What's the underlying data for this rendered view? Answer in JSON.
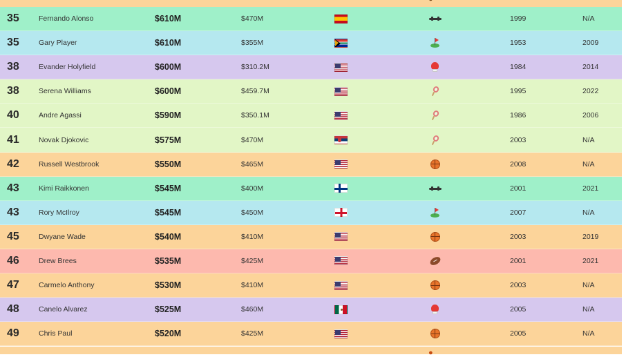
{
  "colors": {
    "orange": "#fcd49a",
    "green": "#9ff0c9",
    "cyan": "#b5e8ef",
    "purple": "#d6c8ee",
    "lime": "#e2f6c6",
    "red": "#fdb9ae"
  },
  "rows": [
    {
      "rank": "35",
      "name": "Fernando Alonso",
      "earnings": "$610M",
      "peak": "$470M",
      "flag": "flag-es",
      "sport_icon": "f1-car-icon",
      "start": "1999",
      "end": "N/A",
      "color": "#9ff0c9"
    },
    {
      "rank": "35",
      "name": "Gary Player",
      "earnings": "$610M",
      "peak": "$355M",
      "flag": "flag-za",
      "sport_icon": "golf-icon",
      "start": "1953",
      "end": "2009",
      "color": "#b5e8ef"
    },
    {
      "rank": "38",
      "name": "Evander Holyfield",
      "earnings": "$600M",
      "peak": "$310.2M",
      "flag": "flag-us",
      "sport_icon": "boxing-glove-icon",
      "start": "1984",
      "end": "2014",
      "color": "#d6c8ee"
    },
    {
      "rank": "38",
      "name": "Serena Williams",
      "earnings": "$600M",
      "peak": "$459.7M",
      "flag": "flag-us",
      "sport_icon": "tennis-racket-icon",
      "start": "1995",
      "end": "2022",
      "color": "#e2f6c6"
    },
    {
      "rank": "40",
      "name": "Andre Agassi",
      "earnings": "$590M",
      "peak": "$350.1M",
      "flag": "flag-us",
      "sport_icon": "tennis-racket-icon",
      "start": "1986",
      "end": "2006",
      "color": "#e2f6c6"
    },
    {
      "rank": "41",
      "name": "Novak Djokovic",
      "earnings": "$575M",
      "peak": "$470M",
      "flag": "flag-rs",
      "sport_icon": "tennis-racket-icon",
      "start": "2003",
      "end": "N/A",
      "color": "#e2f6c6"
    },
    {
      "rank": "42",
      "name": "Russell Westbrook",
      "earnings": "$550M",
      "peak": "$465M",
      "flag": "flag-us",
      "sport_icon": "basketball-icon",
      "start": "2008",
      "end": "N/A",
      "color": "#fcd49a"
    },
    {
      "rank": "43",
      "name": "Kimi Raikkonen",
      "earnings": "$545M",
      "peak": "$400M",
      "flag": "flag-fi",
      "sport_icon": "f1-car-icon",
      "start": "2001",
      "end": "2021",
      "color": "#9ff0c9"
    },
    {
      "rank": "43",
      "name": "Rory McIlroy",
      "earnings": "$545M",
      "peak": "$450M",
      "flag": "flag-ni",
      "sport_icon": "golf-icon",
      "start": "2007",
      "end": "N/A",
      "color": "#b5e8ef"
    },
    {
      "rank": "45",
      "name": "Dwyane Wade",
      "earnings": "$540M",
      "peak": "$410M",
      "flag": "flag-us",
      "sport_icon": "basketball-icon",
      "start": "2003",
      "end": "2019",
      "color": "#fcd49a"
    },
    {
      "rank": "46",
      "name": "Drew Brees",
      "earnings": "$535M",
      "peak": "$425M",
      "flag": "flag-us",
      "sport_icon": "american-football-icon",
      "start": "2001",
      "end": "2021",
      "color": "#fdb9ae"
    },
    {
      "rank": "47",
      "name": "Carmelo Anthony",
      "earnings": "$530M",
      "peak": "$410M",
      "flag": "flag-us",
      "sport_icon": "basketball-icon",
      "start": "2003",
      "end": "N/A",
      "color": "#fcd49a"
    },
    {
      "rank": "48",
      "name": "Canelo Alvarez",
      "earnings": "$525M",
      "peak": "$460M",
      "flag": "flag-mx",
      "sport_icon": "boxing-glove-icon",
      "start": "2005",
      "end": "N/A",
      "color": "#d6c8ee"
    },
    {
      "rank": "49",
      "name": "Chris Paul",
      "earnings": "$520M",
      "peak": "$425M",
      "flag": "flag-us",
      "sport_icon": "basketball-icon",
      "start": "2005",
      "end": "N/A",
      "color": "#fcd49a"
    }
  ]
}
